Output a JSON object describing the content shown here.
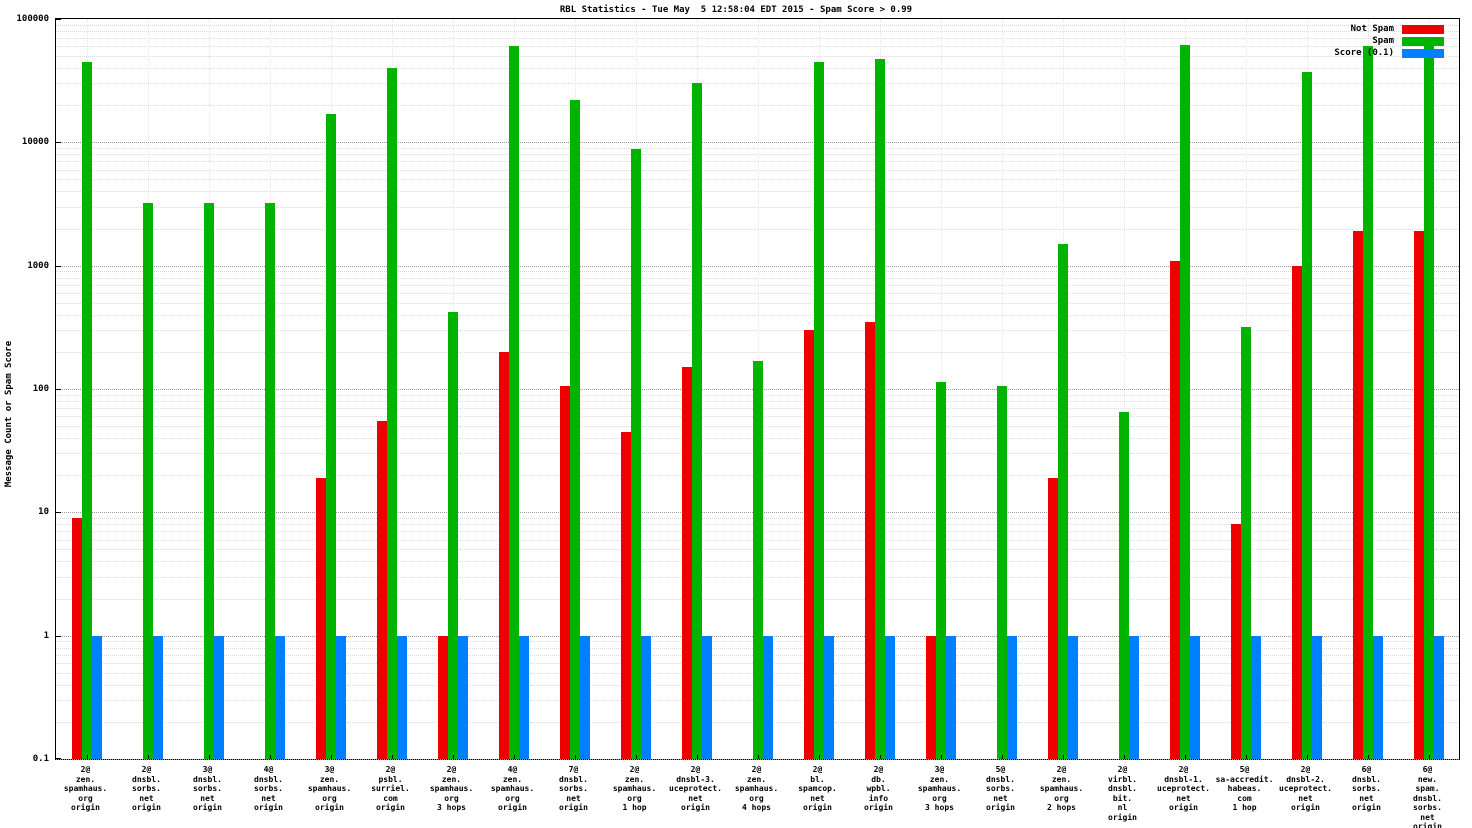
{
  "chart_data": {
    "type": "bar",
    "scale": "log-y",
    "title": "RBL Statistics - Tue May  5 12:58:04 EDT 2015 - Spam Score > 0.99",
    "ylabel": "Message Count or Spam Score",
    "xlabel": "",
    "ylim": [
      0.1,
      100000
    ],
    "ytick_labels": [
      "100000",
      "10000",
      "1000",
      "100",
      "10",
      "1",
      "0.1"
    ],
    "grid": true,
    "legend_position": "top-right",
    "categories": [
      [
        "2@",
        "zen.",
        "spamhaus.",
        "org",
        "origin"
      ],
      [
        "2@",
        "dnsbl.",
        "sorbs.",
        "net",
        "origin"
      ],
      [
        "3@",
        "dnsbl.",
        "sorbs.",
        "net",
        "origin"
      ],
      [
        "4@",
        "dnsbl.",
        "sorbs.",
        "net",
        "origin"
      ],
      [
        "3@",
        "zen.",
        "spamhaus.",
        "org",
        "origin"
      ],
      [
        "2@",
        "psbl.",
        "surriel.",
        "com",
        "origin"
      ],
      [
        "2@",
        "zen.",
        "spamhaus.",
        "org",
        "3 hops"
      ],
      [
        "4@",
        "zen.",
        "spamhaus.",
        "org",
        "origin"
      ],
      [
        "7@",
        "dnsbl.",
        "sorbs.",
        "net",
        "origin"
      ],
      [
        "2@",
        "zen.",
        "spamhaus.",
        "org",
        "1 hop"
      ],
      [
        "2@",
        "dnsbl-3.",
        "uceprotect.",
        "net",
        "origin"
      ],
      [
        "2@",
        "zen.",
        "spamhaus.",
        "org",
        "4 hops"
      ],
      [
        "2@",
        "bl.",
        "spamcop.",
        "net",
        "origin"
      ],
      [
        "2@",
        "db.",
        "wpbl.",
        "info",
        "origin"
      ],
      [
        "3@",
        "zen.",
        "spamhaus.",
        "org",
        "3 hops"
      ],
      [
        "5@",
        "dnsbl.",
        "sorbs.",
        "net",
        "origin"
      ],
      [
        "2@",
        "zen.",
        "spamhaus.",
        "org",
        "2 hops"
      ],
      [
        "2@",
        "virbl.",
        "dnsbl.",
        "bit.",
        "nl",
        "origin"
      ],
      [
        "2@",
        "dnsbl-1.",
        "uceprotect.",
        "net",
        "origin"
      ],
      [
        "5@",
        "sa-accredit.",
        "habeas.",
        "com",
        "1 hop"
      ],
      [
        "2@",
        "dnsbl-2.",
        "uceprotect.",
        "net",
        "origin"
      ],
      [
        "6@",
        "dnsbl.",
        "sorbs.",
        "net",
        "origin"
      ],
      [
        "6@",
        "new.",
        "spam.",
        "dnsbl.",
        "sorbs.",
        "net",
        "origin"
      ]
    ],
    "series": [
      {
        "name": "Not Spam",
        "color": "#ee0000",
        "values": [
          9,
          null,
          null,
          null,
          19,
          55,
          1,
          200,
          105,
          45,
          150,
          null,
          300,
          350,
          1,
          null,
          19,
          null,
          1100,
          8,
          1000,
          1900,
          1900
        ]
      },
      {
        "name": "Spam",
        "color": "#00b400",
        "values": [
          45000,
          3200,
          3200,
          3200,
          17000,
          40000,
          420,
          60000,
          22000,
          8800,
          30000,
          170,
          45000,
          47000,
          115,
          105,
          1500,
          65,
          62000,
          320,
          37000,
          60000,
          60000
        ]
      },
      {
        "name": "Score (0.1)",
        "color": "#0080ff",
        "values": [
          1,
          1,
          1,
          1,
          1,
          1,
          1,
          1,
          1,
          1,
          1,
          1,
          1,
          1,
          1,
          1,
          1,
          1,
          1,
          1,
          1,
          1,
          1
        ]
      }
    ]
  }
}
